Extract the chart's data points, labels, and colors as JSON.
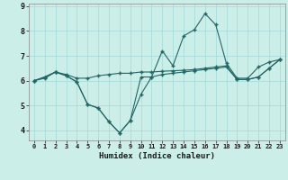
{
  "xlabel": "Humidex (Indice chaleur)",
  "bg_color": "#cceee8",
  "grid_color": "#aaddda",
  "line_color": "#226666",
  "xlim": [
    -0.5,
    23.5
  ],
  "ylim": [
    3.6,
    9.1
  ],
  "yticks": [
    4,
    5,
    6,
    7,
    8,
    9
  ],
  "xticks": [
    0,
    1,
    2,
    3,
    4,
    5,
    6,
    7,
    8,
    9,
    10,
    11,
    12,
    13,
    14,
    15,
    16,
    17,
    18,
    19,
    20,
    21,
    22,
    23
  ],
  "curve_down_x": [
    0,
    1,
    2,
    3,
    4,
    5,
    6,
    7,
    8,
    9,
    10,
    11,
    12,
    13,
    14,
    15,
    16,
    17,
    18,
    19,
    20,
    21,
    22,
    23
  ],
  "curve_down_y": [
    6.0,
    6.15,
    6.35,
    6.2,
    5.95,
    5.05,
    4.9,
    4.35,
    3.9,
    4.4,
    5.45,
    6.15,
    6.25,
    6.3,
    6.35,
    6.4,
    6.45,
    6.5,
    6.55,
    6.05,
    6.05,
    6.15,
    6.5,
    6.85
  ],
  "curve_up_x": [
    0,
    1,
    2,
    3,
    4,
    5,
    6,
    7,
    8,
    9,
    10,
    11,
    12,
    13,
    14,
    15,
    16,
    17,
    18,
    19,
    20,
    21,
    22,
    23
  ],
  "curve_up_y": [
    6.0,
    6.15,
    6.35,
    6.2,
    5.95,
    5.05,
    4.9,
    4.35,
    3.9,
    4.4,
    6.15,
    6.15,
    7.2,
    6.6,
    7.8,
    8.05,
    8.7,
    8.25,
    6.7,
    6.1,
    6.1,
    6.55,
    6.75,
    6.85
  ],
  "curve_flat_x": [
    0,
    1,
    2,
    3,
    4,
    5,
    6,
    7,
    8,
    9,
    10,
    11,
    12,
    13,
    14,
    15,
    16,
    17,
    18,
    19,
    20,
    21,
    22,
    23
  ],
  "curve_flat_y": [
    6.0,
    6.1,
    6.35,
    6.25,
    6.1,
    6.1,
    6.2,
    6.25,
    6.3,
    6.3,
    6.35,
    6.35,
    6.38,
    6.4,
    6.42,
    6.45,
    6.5,
    6.55,
    6.6,
    6.05,
    6.05,
    6.15,
    6.5,
    6.85
  ]
}
